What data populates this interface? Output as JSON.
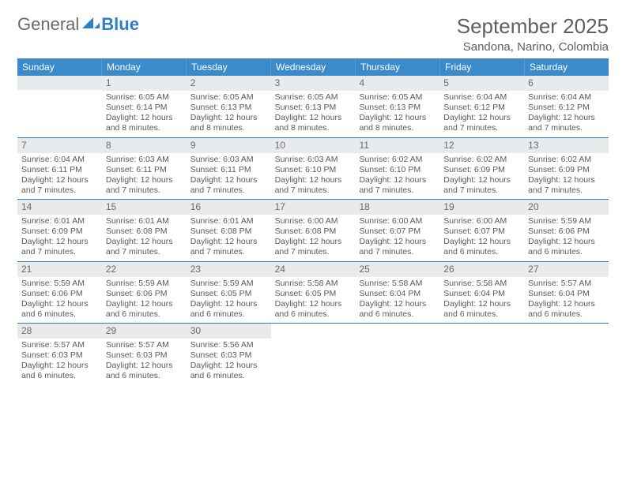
{
  "brand": {
    "part1": "General",
    "part2": "Blue"
  },
  "title": "September 2025",
  "location": "Sandona, Narino, Colombia",
  "colors": {
    "header_blue": "#3b8bcc",
    "accent_blue": "#2f7fc3",
    "grey_bg": "#e9eaec",
    "text": "#5a5a5a",
    "white": "#ffffff"
  },
  "dow": [
    "Sunday",
    "Monday",
    "Tuesday",
    "Wednesday",
    "Thursday",
    "Friday",
    "Saturday"
  ],
  "weeks": [
    [
      {
        "n": "",
        "lines": [
          "",
          "",
          "",
          ""
        ]
      },
      {
        "n": "1",
        "lines": [
          "Sunrise: 6:05 AM",
          "Sunset: 6:14 PM",
          "Daylight: 12 hours",
          "and 8 minutes."
        ]
      },
      {
        "n": "2",
        "lines": [
          "Sunrise: 6:05 AM",
          "Sunset: 6:13 PM",
          "Daylight: 12 hours",
          "and 8 minutes."
        ]
      },
      {
        "n": "3",
        "lines": [
          "Sunrise: 6:05 AM",
          "Sunset: 6:13 PM",
          "Daylight: 12 hours",
          "and 8 minutes."
        ]
      },
      {
        "n": "4",
        "lines": [
          "Sunrise: 6:05 AM",
          "Sunset: 6:13 PM",
          "Daylight: 12 hours",
          "and 8 minutes."
        ]
      },
      {
        "n": "5",
        "lines": [
          "Sunrise: 6:04 AM",
          "Sunset: 6:12 PM",
          "Daylight: 12 hours",
          "and 7 minutes."
        ]
      },
      {
        "n": "6",
        "lines": [
          "Sunrise: 6:04 AM",
          "Sunset: 6:12 PM",
          "Daylight: 12 hours",
          "and 7 minutes."
        ]
      }
    ],
    [
      {
        "n": "7",
        "lines": [
          "Sunrise: 6:04 AM",
          "Sunset: 6:11 PM",
          "Daylight: 12 hours",
          "and 7 minutes."
        ]
      },
      {
        "n": "8",
        "lines": [
          "Sunrise: 6:03 AM",
          "Sunset: 6:11 PM",
          "Daylight: 12 hours",
          "and 7 minutes."
        ]
      },
      {
        "n": "9",
        "lines": [
          "Sunrise: 6:03 AM",
          "Sunset: 6:11 PM",
          "Daylight: 12 hours",
          "and 7 minutes."
        ]
      },
      {
        "n": "10",
        "lines": [
          "Sunrise: 6:03 AM",
          "Sunset: 6:10 PM",
          "Daylight: 12 hours",
          "and 7 minutes."
        ]
      },
      {
        "n": "11",
        "lines": [
          "Sunrise: 6:02 AM",
          "Sunset: 6:10 PM",
          "Daylight: 12 hours",
          "and 7 minutes."
        ]
      },
      {
        "n": "12",
        "lines": [
          "Sunrise: 6:02 AM",
          "Sunset: 6:09 PM",
          "Daylight: 12 hours",
          "and 7 minutes."
        ]
      },
      {
        "n": "13",
        "lines": [
          "Sunrise: 6:02 AM",
          "Sunset: 6:09 PM",
          "Daylight: 12 hours",
          "and 7 minutes."
        ]
      }
    ],
    [
      {
        "n": "14",
        "lines": [
          "Sunrise: 6:01 AM",
          "Sunset: 6:09 PM",
          "Daylight: 12 hours",
          "and 7 minutes."
        ]
      },
      {
        "n": "15",
        "lines": [
          "Sunrise: 6:01 AM",
          "Sunset: 6:08 PM",
          "Daylight: 12 hours",
          "and 7 minutes."
        ]
      },
      {
        "n": "16",
        "lines": [
          "Sunrise: 6:01 AM",
          "Sunset: 6:08 PM",
          "Daylight: 12 hours",
          "and 7 minutes."
        ]
      },
      {
        "n": "17",
        "lines": [
          "Sunrise: 6:00 AM",
          "Sunset: 6:08 PM",
          "Daylight: 12 hours",
          "and 7 minutes."
        ]
      },
      {
        "n": "18",
        "lines": [
          "Sunrise: 6:00 AM",
          "Sunset: 6:07 PM",
          "Daylight: 12 hours",
          "and 7 minutes."
        ]
      },
      {
        "n": "19",
        "lines": [
          "Sunrise: 6:00 AM",
          "Sunset: 6:07 PM",
          "Daylight: 12 hours",
          "and 6 minutes."
        ]
      },
      {
        "n": "20",
        "lines": [
          "Sunrise: 5:59 AM",
          "Sunset: 6:06 PM",
          "Daylight: 12 hours",
          "and 6 minutes."
        ]
      }
    ],
    [
      {
        "n": "21",
        "lines": [
          "Sunrise: 5:59 AM",
          "Sunset: 6:06 PM",
          "Daylight: 12 hours",
          "and 6 minutes."
        ]
      },
      {
        "n": "22",
        "lines": [
          "Sunrise: 5:59 AM",
          "Sunset: 6:06 PM",
          "Daylight: 12 hours",
          "and 6 minutes."
        ]
      },
      {
        "n": "23",
        "lines": [
          "Sunrise: 5:59 AM",
          "Sunset: 6:05 PM",
          "Daylight: 12 hours",
          "and 6 minutes."
        ]
      },
      {
        "n": "24",
        "lines": [
          "Sunrise: 5:58 AM",
          "Sunset: 6:05 PM",
          "Daylight: 12 hours",
          "and 6 minutes."
        ]
      },
      {
        "n": "25",
        "lines": [
          "Sunrise: 5:58 AM",
          "Sunset: 6:04 PM",
          "Daylight: 12 hours",
          "and 6 minutes."
        ]
      },
      {
        "n": "26",
        "lines": [
          "Sunrise: 5:58 AM",
          "Sunset: 6:04 PM",
          "Daylight: 12 hours",
          "and 6 minutes."
        ]
      },
      {
        "n": "27",
        "lines": [
          "Sunrise: 5:57 AM",
          "Sunset: 6:04 PM",
          "Daylight: 12 hours",
          "and 6 minutes."
        ]
      }
    ],
    [
      {
        "n": "28",
        "lines": [
          "Sunrise: 5:57 AM",
          "Sunset: 6:03 PM",
          "Daylight: 12 hours",
          "and 6 minutes."
        ]
      },
      {
        "n": "29",
        "lines": [
          "Sunrise: 5:57 AM",
          "Sunset: 6:03 PM",
          "Daylight: 12 hours",
          "and 6 minutes."
        ]
      },
      {
        "n": "30",
        "lines": [
          "Sunrise: 5:56 AM",
          "Sunset: 6:03 PM",
          "Daylight: 12 hours",
          "and 6 minutes."
        ]
      },
      {
        "n": "",
        "lines": [
          "",
          "",
          "",
          ""
        ]
      },
      {
        "n": "",
        "lines": [
          "",
          "",
          "",
          ""
        ]
      },
      {
        "n": "",
        "lines": [
          "",
          "",
          "",
          ""
        ]
      },
      {
        "n": "",
        "lines": [
          "",
          "",
          "",
          ""
        ]
      }
    ]
  ]
}
